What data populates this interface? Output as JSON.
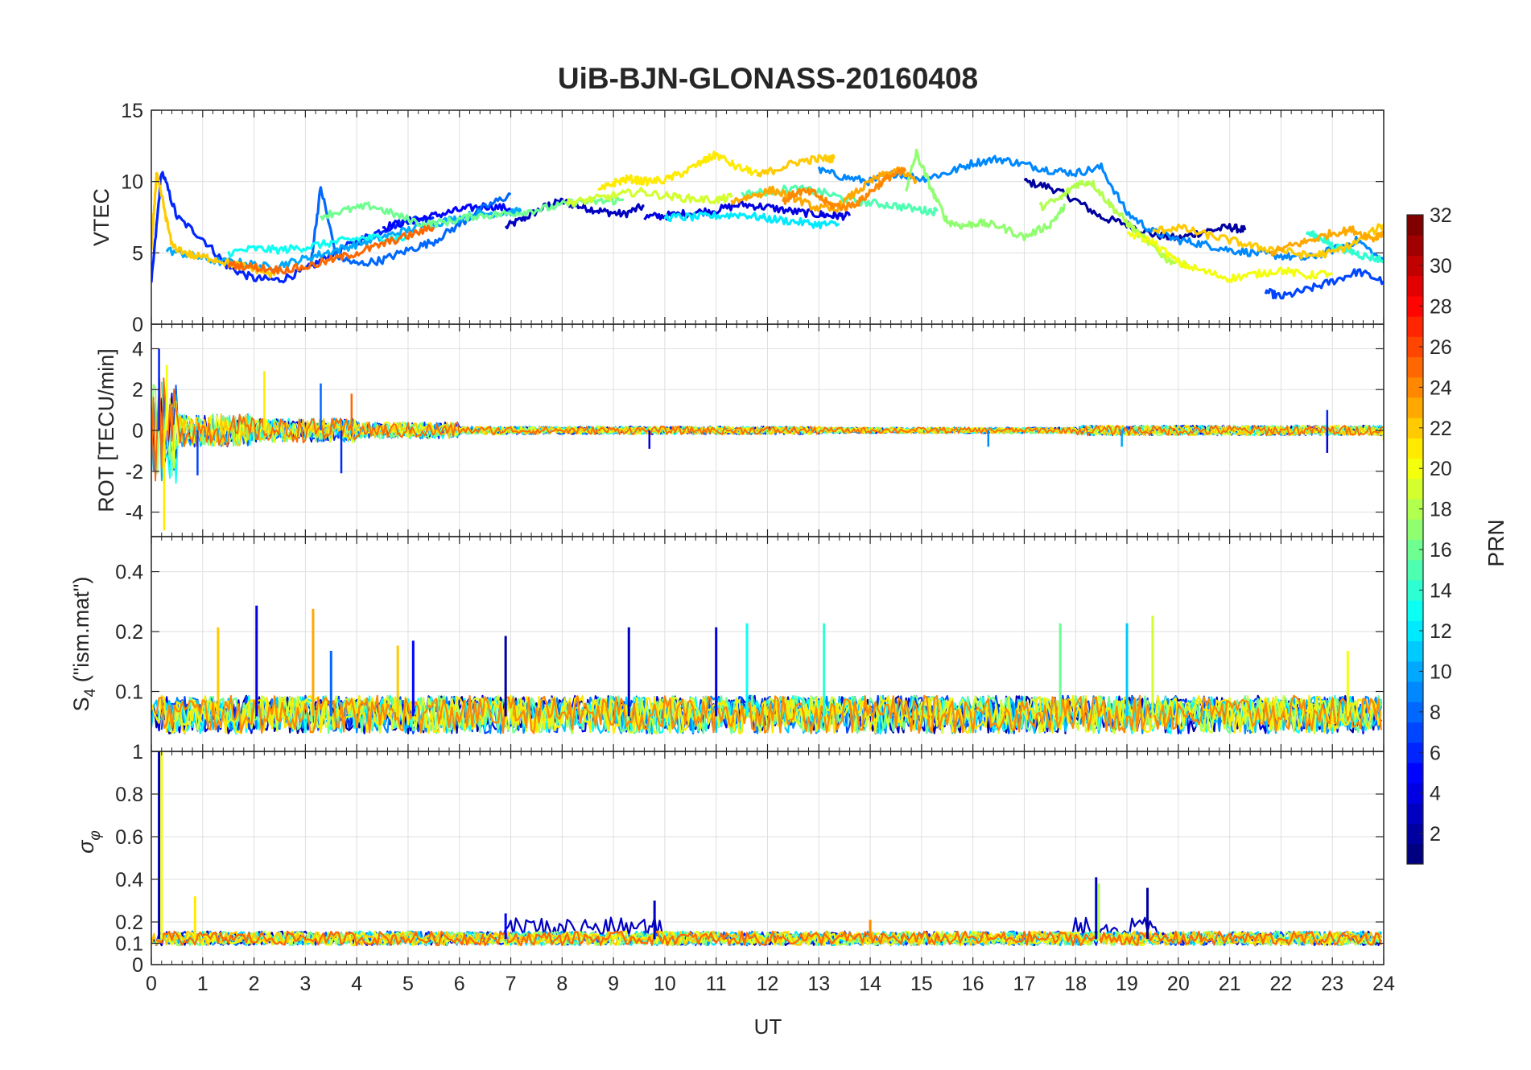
{
  "figure": {
    "title": "UiB-BJN-GLONASS-20160408",
    "xlabel": "UT",
    "background": "#ffffff",
    "axes_color": "#262626",
    "grid_color": "#dfdfdf"
  },
  "chart_data": [
    {
      "type": "line",
      "panel": "vtec",
      "title": "UiB-BJN-GLONASS-20160408",
      "ylabel": "VTEC",
      "xlabel": "",
      "xlim": [
        0,
        24
      ],
      "ylim": [
        0,
        15
      ],
      "yticks": [
        0,
        5,
        10,
        15
      ],
      "grid": true,
      "series": [
        {
          "prn": 3,
          "x": [
            6.9,
            7.3,
            7.7,
            8.0,
            8.4,
            8.8,
            9.2,
            9.6
          ],
          "y": [
            6.8,
            7.5,
            8.3,
            8.6,
            8.2,
            7.9,
            7.7,
            8.3
          ]
        },
        {
          "prn": 2,
          "x": [
            17.0,
            17.5,
            18.0,
            18.5,
            19.0,
            19.5,
            20.0,
            20.5,
            21.0,
            21.3
          ],
          "y": [
            10.0,
            9.6,
            8.7,
            7.5,
            7.0,
            6.3,
            6.0,
            6.5,
            6.8,
            6.6
          ]
        },
        {
          "prn": 6,
          "x": [
            0.0,
            0.2,
            0.5,
            1.0,
            1.5,
            2.0,
            2.5,
            3.0,
            3.5,
            4.0,
            4.5,
            5.0,
            5.5
          ],
          "y": [
            2.8,
            10.8,
            7.5,
            6.0,
            4.0,
            3.2,
            3.1,
            3.8,
            4.9,
            5.8,
            6.6,
            7.3,
            7.5
          ]
        },
        {
          "prn": 5,
          "x": [
            4.5,
            5.0,
            5.5,
            6.0,
            6.5,
            7.0
          ],
          "y": [
            6.8,
            7.2,
            7.6,
            8.0,
            8.3,
            8.1
          ]
        },
        {
          "prn": 4,
          "x": [
            9.6,
            10.0,
            10.5,
            11.0,
            11.5,
            12.0,
            12.5,
            13.0,
            13.3,
            13.6
          ],
          "y": [
            7.5,
            7.6,
            7.8,
            8.0,
            8.4,
            8.2,
            7.9,
            7.7,
            7.6,
            7.6
          ]
        },
        {
          "prn": 7,
          "x": [
            21.7,
            22.0,
            22.5,
            23.0,
            23.5,
            24.0
          ],
          "y": [
            2.3,
            1.9,
            2.4,
            3.0,
            3.7,
            3.0
          ]
        },
        {
          "prn": 9,
          "x": [
            13.0,
            13.5,
            14.0,
            14.5,
            15.0,
            15.5,
            16.0,
            16.5,
            17.0,
            17.5,
            18.0,
            18.5,
            19.0,
            19.5,
            20.0,
            20.5,
            21.0,
            21.5,
            22.0,
            22.5,
            23.0,
            23.5,
            24.0
          ],
          "y": [
            10.8,
            10.3,
            10.0,
            10.6,
            10.2,
            10.6,
            11.3,
            11.6,
            11.2,
            10.8,
            10.6,
            11.0,
            7.8,
            6.5,
            5.9,
            5.6,
            5.2,
            5.0,
            4.8,
            4.6,
            5.2,
            5.9,
            4.3
          ]
        },
        {
          "prn": 8,
          "x": [
            3.1,
            3.3,
            3.6,
            4.0,
            4.5,
            5.0,
            5.5,
            6.0,
            6.5,
            7.0
          ],
          "y": [
            4.1,
            9.6,
            4.8,
            4.2,
            4.5,
            5.2,
            5.8,
            7.0,
            8.2,
            9.1
          ]
        },
        {
          "prn": 10,
          "x": [
            0.3,
            0.8,
            1.3,
            1.8,
            2.3,
            2.8,
            3.3,
            3.8,
            4.3,
            4.8,
            5.3,
            5.8,
            6.3,
            6.8,
            7.2
          ],
          "y": [
            5.2,
            4.8,
            4.4,
            4.3,
            4.0,
            4.4,
            4.9,
            5.4,
            5.9,
            6.4,
            6.9,
            7.3,
            7.7,
            7.8,
            7.9
          ]
        },
        {
          "prn": 12,
          "x": [
            10.0,
            10.5,
            11.0,
            11.5,
            12.0,
            12.5,
            13.0,
            13.4
          ],
          "y": [
            7.5,
            7.5,
            7.6,
            7.7,
            7.4,
            7.2,
            7.0,
            7.0
          ]
        },
        {
          "prn": 13,
          "x": [
            1.5,
            2.0,
            2.5,
            3.0,
            3.5,
            4.0,
            4.5,
            5.0
          ],
          "y": [
            5.0,
            5.3,
            5.2,
            5.4,
            5.7,
            6.0,
            6.1,
            6.0
          ]
        },
        {
          "prn": 14,
          "x": [
            22.5,
            22.8,
            23.0,
            23.3,
            23.6,
            24.0
          ],
          "y": [
            6.4,
            6.0,
            5.5,
            5.2,
            4.8,
            4.5
          ]
        },
        {
          "prn": 15,
          "x": [
            11.5,
            12.0,
            12.5,
            13.0,
            13.5,
            14.0,
            14.5,
            15.0,
            15.3
          ],
          "y": [
            9.1,
            9.3,
            9.5,
            9.3,
            8.8,
            8.5,
            8.3,
            8.0,
            7.9
          ]
        },
        {
          "prn": 16,
          "x": [
            3.3,
            3.8,
            4.3,
            4.8,
            5.3,
            5.8,
            6.3,
            6.8,
            7.3,
            7.8,
            8.3,
            8.8,
            9.2
          ],
          "y": [
            7.6,
            8.0,
            8.3,
            7.6,
            7.0,
            7.2,
            7.6,
            7.7,
            7.9,
            8.2,
            8.6,
            8.6,
            8.7
          ]
        },
        {
          "prn": 17,
          "x": [
            14.7,
            14.9,
            15.2,
            15.5,
            15.8,
            16.1,
            16.5,
            17.0,
            17.5,
            17.8
          ],
          "y": [
            9.5,
            12.0,
            9.4,
            7.2,
            6.9,
            7.1,
            6.9,
            6.1,
            7.0,
            8.3
          ]
        },
        {
          "prn": 18,
          "x": [
            17.3,
            17.7,
            18.0,
            18.3,
            18.6,
            18.9,
            19.2,
            19.5,
            19.8,
            20.2
          ],
          "y": [
            8.2,
            8.8,
            9.8,
            10.0,
            8.7,
            7.5,
            6.4,
            5.5,
            4.5,
            4.2
          ]
        },
        {
          "prn": 19,
          "x": [
            8.1,
            8.5,
            9.0,
            9.5,
            10.0,
            10.5,
            11.0,
            11.3
          ],
          "y": [
            8.5,
            8.7,
            9.0,
            9.3,
            9.0,
            8.8,
            8.7,
            8.9
          ]
        },
        {
          "prn": 20,
          "x": [
            19.0,
            19.5,
            20.0,
            20.5,
            21.0,
            21.5,
            22.0,
            22.5,
            23.0
          ],
          "y": [
            6.4,
            5.8,
            4.3,
            3.7,
            3.2,
            3.5,
            3.8,
            3.4,
            3.6
          ]
        },
        {
          "prn": 21,
          "x": [
            8.7,
            9.0,
            9.3,
            9.6,
            10.0,
            10.4,
            10.8,
            11.0,
            11.4,
            11.8
          ],
          "y": [
            9.3,
            9.9,
            10.2,
            10.0,
            10.1,
            10.7,
            11.5,
            11.9,
            11.0,
            10.6
          ]
        },
        {
          "prn": 22,
          "x": [
            0.0,
            0.1,
            0.2,
            0.4,
            0.8,
            1.2,
            1.6,
            2.0,
            2.4
          ],
          "y": [
            5.2,
            10.5,
            9.0,
            5.5,
            4.8,
            4.6,
            4.2,
            3.9,
            3.4
          ]
        },
        {
          "prn": 22,
          "x": [
            19.5,
            20.0,
            20.5,
            21.0,
            21.5,
            22.0,
            22.5,
            23.0,
            23.5,
            24.0
          ],
          "y": [
            6.5,
            6.8,
            6.3,
            5.9,
            5.4,
            5.2,
            4.8,
            5.0,
            5.8,
            7.0
          ]
        },
        {
          "prn": 23,
          "x": [
            11.3,
            11.7,
            12.1,
            12.5,
            12.9,
            13.3,
            13.7,
            14.1,
            14.5,
            14.9
          ],
          "y": [
            8.6,
            9.0,
            9.4,
            8.9,
            8.2,
            8.0,
            9.2,
            10.2,
            10.8,
            10.1
          ]
        },
        {
          "prn": 23,
          "x": [
            21.8,
            22.2,
            22.6,
            23.0,
            23.4,
            23.8,
            24.0
          ],
          "y": [
            5.0,
            5.5,
            5.9,
            6.4,
            6.6,
            6.0,
            6.5
          ]
        },
        {
          "prn": 24,
          "x": [
            12.3,
            12.6,
            12.9,
            13.2,
            13.5,
            13.8,
            14.1,
            14.4,
            14.7
          ],
          "y": [
            8.6,
            9.3,
            9.2,
            8.4,
            8.2,
            8.6,
            9.6,
            10.4,
            10.8
          ]
        },
        {
          "prn": 22,
          "x": [
            11.8,
            12.2,
            12.6,
            13.0,
            13.3
          ],
          "y": [
            10.4,
            10.9,
            11.4,
            11.6,
            11.6
          ]
        },
        {
          "prn": 25,
          "x": [
            1.5,
            2.0,
            2.5,
            3.0,
            3.5,
            4.0,
            4.5,
            5.0,
            5.5
          ],
          "y": [
            4.2,
            4.0,
            3.8,
            4.0,
            4.5,
            5.0,
            5.6,
            6.2,
            6.8
          ]
        }
      ]
    },
    {
      "type": "line",
      "panel": "rot",
      "ylabel": "ROT [TECU/min]",
      "xlim": [
        0,
        24
      ],
      "ylim": [
        -5.2,
        5.2
      ],
      "yticks": [
        -4,
        -2,
        0,
        2,
        4
      ],
      "grid": true,
      "noise": [
        {
          "x0": 0.0,
          "x1": 0.5,
          "amp": 2.6
        },
        {
          "x0": 0.5,
          "x1": 2.0,
          "amp": 0.8
        },
        {
          "x0": 2.0,
          "x1": 4.0,
          "amp": 0.6
        },
        {
          "x0": 4.0,
          "x1": 6.0,
          "amp": 0.4
        },
        {
          "x0": 6.0,
          "x1": 13.0,
          "amp": 0.2
        },
        {
          "x0": 13.0,
          "x1": 18.0,
          "amp": 0.15
        },
        {
          "x0": 18.0,
          "x1": 24.0,
          "amp": 0.25
        }
      ],
      "spikes": [
        {
          "x": 0.15,
          "y": 4.0,
          "prn": 6
        },
        {
          "x": 0.25,
          "y": -4.9,
          "prn": 21
        },
        {
          "x": 0.3,
          "y": 3.2,
          "prn": 20
        },
        {
          "x": 0.9,
          "y": -2.2,
          "prn": 7
        },
        {
          "x": 2.2,
          "y": 2.9,
          "prn": 21
        },
        {
          "x": 3.3,
          "y": 2.3,
          "prn": 8
        },
        {
          "x": 3.7,
          "y": -2.1,
          "prn": 6
        },
        {
          "x": 3.9,
          "y": 1.8,
          "prn": 25
        },
        {
          "x": 9.7,
          "y": -0.9,
          "prn": 4
        },
        {
          "x": 16.3,
          "y": -0.8,
          "prn": 9
        },
        {
          "x": 18.9,
          "y": -0.8,
          "prn": 10
        },
        {
          "x": 22.9,
          "y": 1.0,
          "prn": 6
        },
        {
          "x": 22.9,
          "y": -1.1,
          "prn": 4
        },
        {
          "x": 24.0,
          "y": -0.5,
          "prn": 21
        }
      ],
      "series_prn": [
        3,
        6,
        8,
        10,
        13,
        16,
        17,
        20,
        22,
        25
      ]
    },
    {
      "type": "line",
      "panel": "s4",
      "ylabel": "S_4 (\"ism.mat\")",
      "ylabel_main": "S",
      "ylabel_sub": "4",
      "ylabel_rest": " (\"ism.mat\")",
      "xlim": [
        0,
        24
      ],
      "ylim": [
        0.05,
        0.6
      ],
      "ytick_values": [
        0.1,
        0.2,
        0.4
      ],
      "yticks": [
        "0.1",
        "0.2",
        "0.4"
      ],
      "scale": "log",
      "grid": true,
      "baseline": 0.075,
      "spikes": [
        {
          "x": 2.05,
          "y": 0.27,
          "prn": 4
        },
        {
          "x": 3.15,
          "y": 0.26,
          "prn": 23
        },
        {
          "x": 1.3,
          "y": 0.21,
          "prn": 22
        },
        {
          "x": 6.9,
          "y": 0.19,
          "prn": 2
        },
        {
          "x": 9.3,
          "y": 0.21,
          "prn": 3
        },
        {
          "x": 11.0,
          "y": 0.21,
          "prn": 4
        },
        {
          "x": 11.6,
          "y": 0.22,
          "prn": 13
        },
        {
          "x": 13.1,
          "y": 0.22,
          "prn": 14
        },
        {
          "x": 17.7,
          "y": 0.22,
          "prn": 16
        },
        {
          "x": 19.0,
          "y": 0.22,
          "prn": 11
        },
        {
          "x": 19.5,
          "y": 0.24,
          "prn": 19
        },
        {
          "x": 4.8,
          "y": 0.17,
          "prn": 22
        },
        {
          "x": 5.1,
          "y": 0.18,
          "prn": 5
        },
        {
          "x": 3.5,
          "y": 0.16,
          "prn": 8
        },
        {
          "x": 23.3,
          "y": 0.16,
          "prn": 20
        }
      ],
      "series_prn": [
        2,
        4,
        7,
        9,
        11,
        13,
        16,
        19,
        21,
        24
      ]
    },
    {
      "type": "line",
      "panel": "sigma_phi",
      "ylabel": "σ_φ",
      "ylabel_main": "σ",
      "ylabel_sub": "φ",
      "xlim": [
        0,
        24
      ],
      "ylim": [
        0,
        1
      ],
      "yticks": [
        0,
        0.1,
        0.2,
        0.4,
        0.6,
        0.8,
        1
      ],
      "yticklabels": [
        "0",
        "0.1",
        "0.2",
        "0.4",
        "0.6",
        "0.8",
        "1"
      ],
      "grid": true,
      "baseline": 0.12,
      "spikes": [
        {
          "x": 0.15,
          "y": 1.0,
          "prn": 3
        },
        {
          "x": 0.2,
          "y": 1.0,
          "prn": 20
        },
        {
          "x": 0.85,
          "y": 0.32,
          "prn": 21
        },
        {
          "x": 18.4,
          "y": 0.41,
          "prn": 3
        },
        {
          "x": 18.45,
          "y": 0.38,
          "prn": 18
        },
        {
          "x": 19.4,
          "y": 0.36,
          "prn": 2
        },
        {
          "x": 9.8,
          "y": 0.3,
          "prn": 3
        },
        {
          "x": 6.9,
          "y": 0.24,
          "prn": 5
        },
        {
          "x": 14.0,
          "y": 0.21,
          "prn": 24
        }
      ],
      "series_prn": [
        3,
        6,
        8,
        10,
        12,
        16,
        18,
        20,
        22,
        25
      ],
      "xticks": [
        0,
        1,
        2,
        3,
        4,
        5,
        6,
        7,
        8,
        9,
        10,
        11,
        12,
        13,
        14,
        15,
        16,
        17,
        18,
        19,
        20,
        21,
        22,
        23,
        24
      ],
      "xticklabels": [
        "0",
        "1",
        "2",
        "3",
        "4",
        "5",
        "6",
        "7",
        "8",
        "9",
        "10",
        "11",
        "12",
        "13",
        "14",
        "15",
        "16",
        "17",
        "18",
        "19",
        "20",
        "21",
        "22",
        "23",
        "24"
      ]
    }
  ],
  "colorbar": {
    "label": "PRN",
    "min": 1,
    "max": 32,
    "colormap": "jet",
    "ticks": [
      2,
      4,
      6,
      8,
      10,
      12,
      14,
      16,
      18,
      20,
      22,
      24,
      26,
      28,
      30,
      32
    ],
    "ticklabels": [
      "2",
      "4",
      "6",
      "8",
      "10",
      "12",
      "14",
      "16",
      "18",
      "20",
      "22",
      "24",
      "26",
      "28",
      "30",
      "32"
    ]
  }
}
